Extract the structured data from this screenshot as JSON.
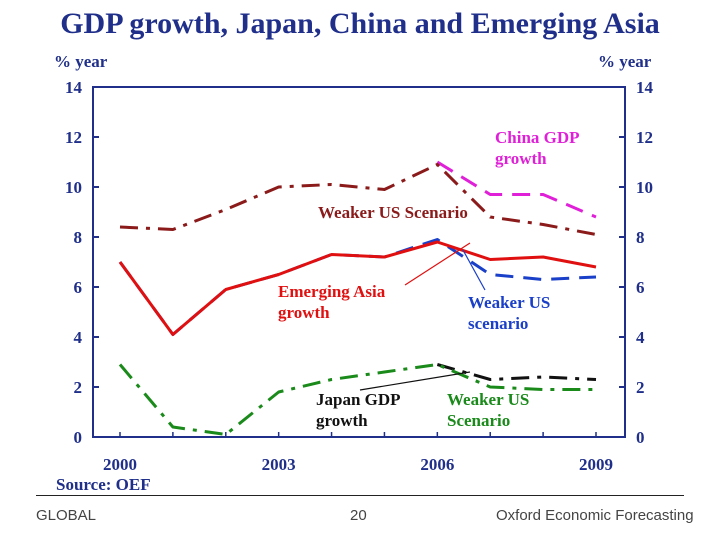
{
  "slide": {
    "title": "GDP growth, Japan, China and Emerging Asia",
    "footer_left": "GLOBAL",
    "footer_page": "20",
    "footer_right": "Oxford Economic Forecasting"
  },
  "colors": {
    "title": "#1f2f8a",
    "axis": "#1f2f8a",
    "china": "#8b1a1a",
    "china_scenario": "#e020d8",
    "emerging": "#e01010",
    "emerging_scenario": "#1a3fc8",
    "japan": "#1a8a1a",
    "japan_scenario": "#111111"
  },
  "chart_data": {
    "type": "line",
    "title": "GDP growth, Japan, China and Emerging Asia",
    "ylabel_left": "% year",
    "ylabel_right": "% year",
    "source": "Source: OEF",
    "x_tick_labels": [
      "2000",
      "2003",
      "2006",
      "2009"
    ],
    "y_ticks": [
      0,
      2,
      4,
      6,
      8,
      10,
      12,
      14
    ],
    "xlim": [
      2000,
      2009
    ],
    "ylim": [
      0,
      14
    ],
    "grid": false,
    "series": [
      {
        "key": "china",
        "x": [
          2000,
          2001,
          2002,
          2003,
          2004,
          2005,
          2006,
          2007,
          2008,
          2009
        ],
        "values": [
          8.4,
          8.3,
          9.1,
          10.0,
          10.1,
          9.9,
          10.9,
          8.8,
          8.5,
          8.1
        ]
      },
      {
        "key": "china_scenario",
        "x": [
          2006,
          2007,
          2008,
          2009
        ],
        "values": [
          11.0,
          9.7,
          9.7,
          8.8
        ]
      },
      {
        "key": "emerging",
        "x": [
          2000,
          2001,
          2002,
          2003,
          2004,
          2005,
          2006,
          2007,
          2008,
          2009
        ],
        "values": [
          7.0,
          4.1,
          5.9,
          6.5,
          7.3,
          7.2,
          7.8,
          7.1,
          7.2,
          6.8
        ]
      },
      {
        "key": "emerging_scenario",
        "x": [
          2000,
          2001,
          2002,
          2003,
          2004,
          2005,
          2006,
          2007,
          2008,
          2009
        ],
        "values": [
          7.0,
          4.1,
          5.9,
          6.5,
          7.3,
          7.2,
          7.9,
          6.5,
          6.3,
          6.4
        ]
      },
      {
        "key": "japan",
        "x": [
          2000,
          2001,
          2002,
          2003,
          2004,
          2005,
          2006,
          2007,
          2008,
          2009
        ],
        "values": [
          2.9,
          0.4,
          0.1,
          1.8,
          2.3,
          2.6,
          2.9,
          2.0,
          1.9,
          1.9
        ]
      },
      {
        "key": "japan_scenario",
        "x": [
          2006,
          2007,
          2008,
          2009
        ],
        "values": [
          2.9,
          2.3,
          2.4,
          2.3
        ]
      }
    ],
    "annotations": {
      "china": [
        "China GDP",
        "growth"
      ],
      "china_scenario": [
        "Weaker US Scenario"
      ],
      "emerging": [
        "Emerging Asia",
        "growth"
      ],
      "emerging_scenario": [
        "Weaker US",
        "scenario"
      ],
      "japan": [
        "Japan GDP",
        "growth"
      ],
      "japan_scenario": [
        "Weaker US",
        "Scenario"
      ]
    }
  }
}
